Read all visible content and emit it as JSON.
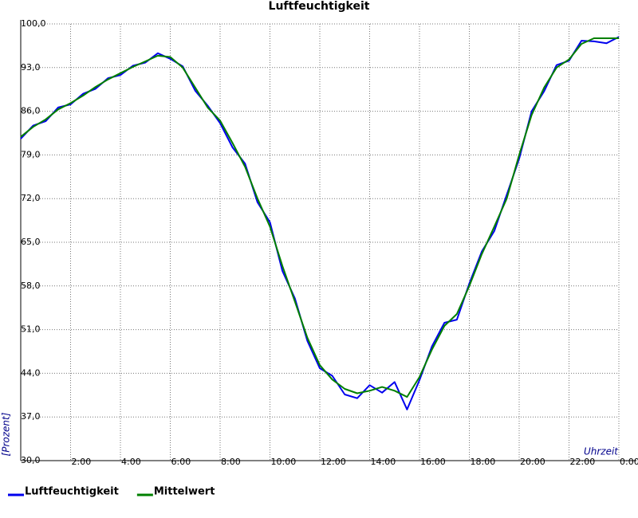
{
  "chart_data": {
    "type": "line",
    "title": "Luftfeuchtigkeit",
    "y_label": "[Prozent]",
    "x_label": "Uhrzeit",
    "x": [
      0,
      0.5,
      1,
      1.5,
      2,
      2.5,
      3,
      3.5,
      4,
      4.5,
      5,
      5.5,
      6,
      6.5,
      7,
      7.5,
      8,
      8.5,
      9,
      9.5,
      10,
      10.5,
      11,
      11.5,
      12,
      12.5,
      13,
      13.5,
      14,
      14.5,
      15,
      15.5,
      16,
      16.5,
      17,
      17.5,
      18,
      18.5,
      19,
      19.5,
      20,
      20.5,
      21,
      21.5,
      22,
      22.5,
      23,
      23.5,
      24
    ],
    "series": [
      {
        "name": "Luftfeuchtigkeit",
        "color": "#0000ee",
        "values": [
          81.6,
          83.7,
          84.4,
          86.6,
          87.1,
          88.8,
          89.6,
          91.3,
          91.8,
          93.3,
          93.8,
          95.3,
          94.4,
          93.2,
          89.3,
          86.9,
          84.1,
          80.2,
          77.6,
          71.4,
          68.2,
          60.4,
          56.0,
          49.2,
          44.8,
          43.6,
          40.6,
          40.0,
          42.1,
          40.9,
          42.6,
          38.2,
          42.9,
          48.3,
          52.1,
          52.6,
          58.4,
          63.5,
          66.8,
          72.6,
          78.4,
          86.0,
          89.2,
          93.4,
          94.1,
          97.3,
          97.2,
          96.9,
          97.9
        ]
      },
      {
        "name": "Mittelwert",
        "color": "#008000",
        "values": [
          81.9,
          83.5,
          84.7,
          86.3,
          87.3,
          88.5,
          89.9,
          91.1,
          92.1,
          93.1,
          94.0,
          94.9,
          94.7,
          93.0,
          89.8,
          86.6,
          84.5,
          80.9,
          77.1,
          72.0,
          67.5,
          61.2,
          55.5,
          49.7,
          45.3,
          43.0,
          41.5,
          40.8,
          41.2,
          41.8,
          41.2,
          40.2,
          43.4,
          47.8,
          51.6,
          53.5,
          58.0,
          63.1,
          67.5,
          72.0,
          79.0,
          85.4,
          89.8,
          93.0,
          94.3,
          96.8,
          97.7,
          97.7,
          97.7
        ]
      }
    ],
    "xlim": [
      0,
      24
    ],
    "xticks": [
      {
        "value": 2,
        "label": "2:00"
      },
      {
        "value": 4,
        "label": "4:00"
      },
      {
        "value": 6,
        "label": "6:00"
      },
      {
        "value": 8,
        "label": "8:00"
      },
      {
        "value": 10,
        "label": "10:00"
      },
      {
        "value": 12,
        "label": "12:00"
      },
      {
        "value": 14,
        "label": "14:00"
      },
      {
        "value": 16,
        "label": "16:00"
      },
      {
        "value": 18,
        "label": "18:00"
      },
      {
        "value": 20,
        "label": "20:00"
      },
      {
        "value": 22,
        "label": "22:00"
      },
      {
        "value": 24,
        "label": "0:00"
      }
    ],
    "ylim": [
      30,
      100
    ],
    "yticks": [
      {
        "value": 30,
        "label": "30,0"
      },
      {
        "value": 37,
        "label": "37,0"
      },
      {
        "value": 44,
        "label": "44,0"
      },
      {
        "value": 51,
        "label": "51,0"
      },
      {
        "value": 58,
        "label": "58,0"
      },
      {
        "value": 65,
        "label": "65,0"
      },
      {
        "value": 72,
        "label": "72,0"
      },
      {
        "value": 79,
        "label": "79,0"
      },
      {
        "value": 86,
        "label": "86,0"
      },
      {
        "value": 93,
        "label": "93,0"
      },
      {
        "value": 100,
        "label": "100,0"
      }
    ],
    "grid": true
  }
}
